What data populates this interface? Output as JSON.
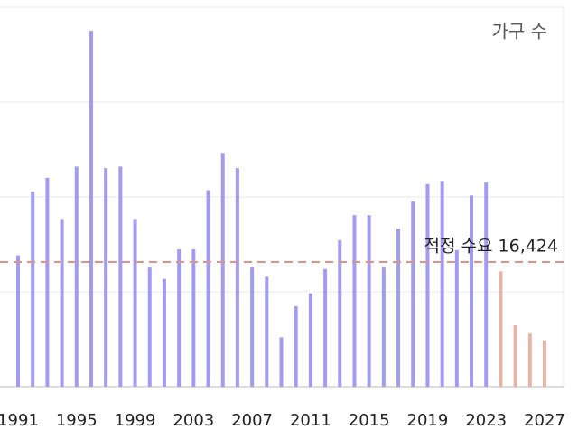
{
  "chart_data": {
    "type": "bar",
    "legend": "가구 수",
    "categories": [
      "1991",
      null,
      null,
      null,
      "1995",
      null,
      null,
      null,
      "1999",
      null,
      null,
      null,
      "2003",
      null,
      null,
      null,
      "2007",
      null,
      null,
      null,
      "2011",
      null,
      null,
      null,
      "2015",
      null,
      null,
      null,
      "2019",
      null,
      null,
      null,
      "2023",
      null,
      null,
      null,
      "2027"
    ],
    "values": [
      17300,
      25700,
      27500,
      22100,
      29000,
      46900,
      28800,
      29000,
      22100,
      15700,
      14200,
      18100,
      18100,
      25900,
      30800,
      28800,
      15700,
      14500,
      6500,
      10600,
      12300,
      15500,
      19300,
      22600,
      22600,
      15700,
      20800,
      24400,
      26700,
      27100,
      18000,
      25200,
      26900,
      15200,
      8100,
      7000,
      6100
    ],
    "colors": [
      "#a29cf0",
      "#a29cf0",
      "#a29cf0",
      "#a29cf0",
      "#a29cf0",
      "#a29cf0",
      "#a29cf0",
      "#a29cf0",
      "#a29cf0",
      "#a29cf0",
      "#a29cf0",
      "#a29cf0",
      "#a29cf0",
      "#a29cf0",
      "#a29cf0",
      "#a29cf0",
      "#a29cf0",
      "#a29cf0",
      "#a29cf0",
      "#a29cf0",
      "#a29cf0",
      "#a29cf0",
      "#a29cf0",
      "#a29cf0",
      "#a29cf0",
      "#a29cf0",
      "#a29cf0",
      "#a29cf0",
      "#a29cf0",
      "#a29cf0",
      "#a29cf0",
      "#a29cf0",
      "#a29cf0",
      "#e6b4a6",
      "#e6b4a6",
      "#e6b4a6",
      "#e6b4a6"
    ],
    "reference_line": {
      "value": 16424,
      "label": "적정 수요 16,424",
      "color": "#d9958a"
    },
    "ylim": [
      0,
      50000
    ],
    "yticks": [
      0,
      12500,
      25000,
      37500,
      50000
    ],
    "grid": true
  }
}
